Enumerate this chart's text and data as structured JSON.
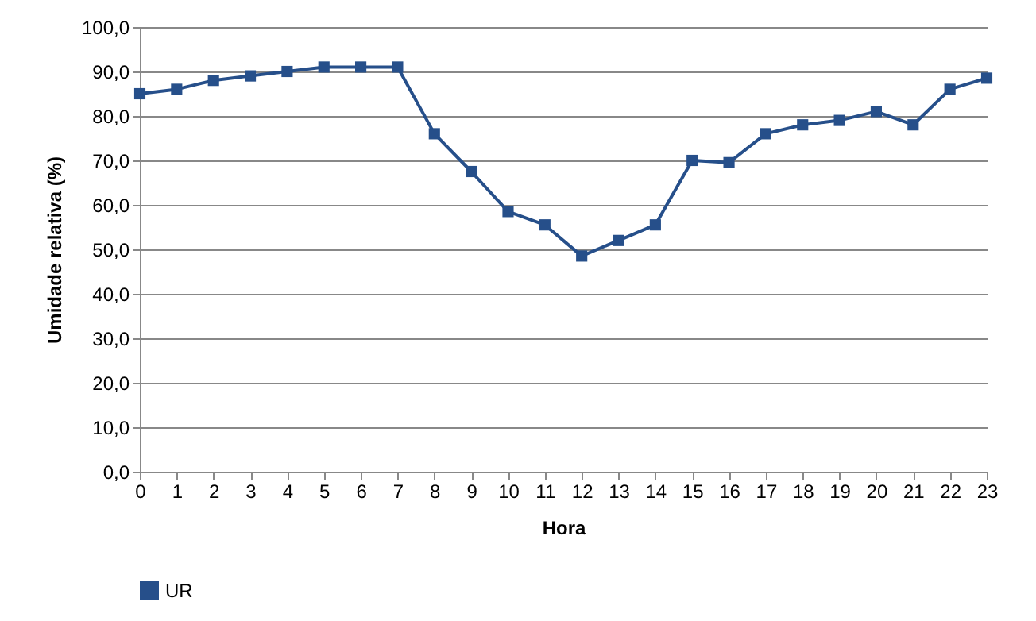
{
  "chart_data": {
    "type": "line",
    "xlabel": "Hora",
    "ylabel": "Umidade relativa (%)",
    "x": [
      0,
      1,
      2,
      3,
      4,
      5,
      6,
      7,
      8,
      9,
      10,
      11,
      12,
      13,
      14,
      15,
      16,
      17,
      18,
      19,
      20,
      21,
      22,
      23
    ],
    "series": [
      {
        "name": "UR",
        "color": "#264f8a",
        "values": [
          85,
          86,
          88,
          89,
          90,
          91,
          91,
          91,
          76,
          67.5,
          58.5,
          55.5,
          48.5,
          52,
          55.5,
          70,
          69.5,
          76,
          78,
          79,
          81,
          78,
          86,
          88.5
        ]
      }
    ],
    "xlim": [
      0,
      23
    ],
    "xticks": [
      0,
      1,
      2,
      3,
      4,
      5,
      6,
      7,
      8,
      9,
      10,
      11,
      12,
      13,
      14,
      15,
      16,
      17,
      18,
      19,
      20,
      21,
      22,
      23
    ],
    "ylim": [
      0,
      100
    ],
    "yticks": [
      {
        "value": 0,
        "label": "0,0"
      },
      {
        "value": 10,
        "label": "10,0"
      },
      {
        "value": 20,
        "label": "20,0"
      },
      {
        "value": 30,
        "label": "30,0"
      },
      {
        "value": 40,
        "label": "40,0"
      },
      {
        "value": 50,
        "label": "50,0"
      },
      {
        "value": 60,
        "label": "60,0"
      },
      {
        "value": 70,
        "label": "70,0"
      },
      {
        "value": 80,
        "label": "80,0"
      },
      {
        "value": 90,
        "label": "90,0"
      },
      {
        "value": 100,
        "label": "100,0"
      }
    ],
    "grid": "y",
    "legend": "bottom",
    "marker": "square",
    "line_style": "solid"
  }
}
